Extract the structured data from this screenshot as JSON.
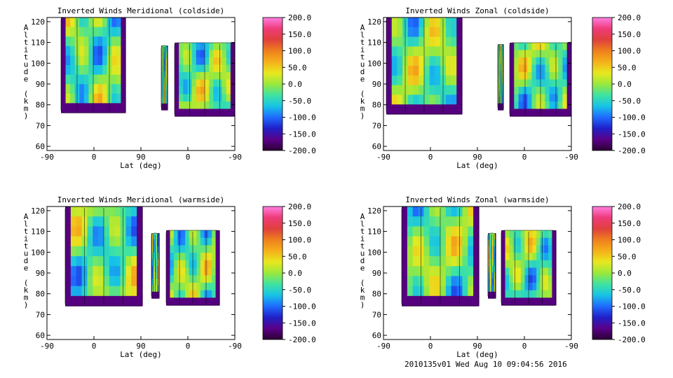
{
  "footer": "2010135v01 Wed Aug 10 09:04:56 2016",
  "colorbar": {
    "ticks": [
      "200.0",
      "150.0",
      "100.0",
      "50.0",
      "0.0",
      "-50.0",
      "-100.0",
      "-150.0",
      "-200.0"
    ],
    "stops": [
      "#2b0033",
      "#5a0088",
      "#2020c8",
      "#1f6bff",
      "#17c3e6",
      "#3fe3a1",
      "#9be83b",
      "#e8e81f",
      "#f5b01a",
      "#ef7f1e",
      "#e0403c",
      "#ef3b7a",
      "#ff7fe0"
    ]
  },
  "chart_data": [
    {
      "type": "contour",
      "title": "Inverted Winds Meridional (coldside)",
      "xlabel": "Lat (deg)",
      "ylabel": "Altitude (km)",
      "x_tick_labels": [
        "-90",
        "0",
        "90",
        "0",
        "-90"
      ],
      "y_ticks": [
        60,
        70,
        80,
        90,
        100,
        110,
        120
      ],
      "ylim": [
        58,
        122
      ],
      "colorbar_range": [
        -200,
        200
      ]
    },
    {
      "type": "contour",
      "title": "Inverted Winds Zonal (coldside)",
      "xlabel": "Lat (deg)",
      "ylabel": "Altitude (km)",
      "x_tick_labels": [
        "-90",
        "0",
        "90",
        "0",
        "-90"
      ],
      "y_ticks": [
        60,
        70,
        80,
        90,
        100,
        110,
        120
      ],
      "ylim": [
        58,
        122
      ],
      "colorbar_range": [
        -200,
        200
      ]
    },
    {
      "type": "contour",
      "title": "Inverted Winds Meridional (warmside)",
      "xlabel": "Lat (deg)",
      "ylabel": "Altitude (km)",
      "x_tick_labels": [
        "-90",
        "0",
        "90",
        "0",
        "-90"
      ],
      "y_ticks": [
        60,
        70,
        80,
        90,
        100,
        110,
        120
      ],
      "ylim": [
        58,
        122
      ],
      "colorbar_range": [
        -200,
        200
      ]
    },
    {
      "type": "contour",
      "title": "Inverted Winds Zonal (warmside)",
      "xlabel": "Lat (deg)",
      "ylabel": "Altitude (km)",
      "x_tick_labels": [
        "-90",
        "0",
        "90",
        "0",
        "-90"
      ],
      "y_ticks": [
        60,
        70,
        80,
        90,
        100,
        110,
        120
      ],
      "ylim": [
        58,
        122
      ],
      "colorbar_range": [
        -200,
        200
      ]
    }
  ]
}
